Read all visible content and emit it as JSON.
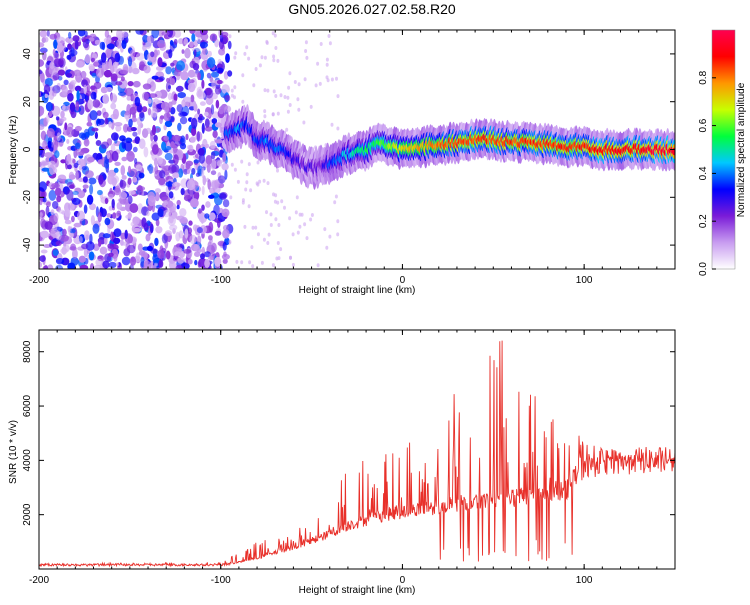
{
  "title": "GN05.2026.027.02.58.R20",
  "chart_data": [
    {
      "type": "heatmap",
      "xlabel": "Height of straight line (km)",
      "ylabel": "Frequency (Hz)",
      "xlim": [
        -200,
        150
      ],
      "ylim": [
        -50,
        50
      ],
      "xticks": [
        "-200",
        "-100",
        "0",
        "100"
      ],
      "yticks": [
        "-40",
        "-20",
        "0",
        "20",
        "40"
      ],
      "colorbar": {
        "label": "Normalized spectral amplitude",
        "range": [
          0,
          1
        ],
        "ticks": [
          "0.0",
          "0.2",
          "0.4",
          "0.6",
          "0.8"
        ],
        "colors": [
          "#ffffff",
          "#c89cf0",
          "#7a1bd8",
          "#0000ff",
          "#00c8ff",
          "#00ff3c",
          "#c8ff00",
          "#ff9600",
          "#ff0000",
          "#ff0050"
        ]
      },
      "ridge": {
        "x": [
          -97,
          -90,
          -85,
          -80,
          -75,
          -70,
          -65,
          -60,
          -55,
          -50,
          -45,
          -40,
          -35,
          -30,
          -25,
          -20,
          -15,
          -10,
          -5,
          0,
          10,
          20,
          30,
          40,
          50,
          60,
          70,
          80,
          90,
          100,
          110,
          120,
          130,
          140,
          150
        ],
        "y": [
          7,
          9,
          10,
          4,
          3,
          1,
          -1,
          -4,
          -6,
          -8,
          -7,
          -6,
          -4,
          -2,
          -1,
          0,
          2,
          3,
          1,
          0,
          1,
          2,
          3,
          4,
          4,
          3,
          3,
          2,
          1,
          1,
          0,
          0,
          0,
          0,
          0
        ],
        "peak_amplitude": [
          0.35,
          0.4,
          0.35,
          0.35,
          0.4,
          0.4,
          0.35,
          0.3,
          0.25,
          0.25,
          0.25,
          0.35,
          0.4,
          0.45,
          0.5,
          0.55,
          0.55,
          0.6,
          0.65,
          0.7,
          0.75,
          0.8,
          0.85,
          0.85,
          0.85,
          0.85,
          0.85,
          0.85,
          0.85,
          0.85,
          0.9,
          0.9,
          0.9,
          0.95,
          0.95
        ]
      },
      "noise_region_x": [
        -200,
        -95
      ]
    },
    {
      "type": "line",
      "xlabel": "Height of straight line (km)",
      "ylabel": "SNR (10 * v/v)",
      "xlim": [
        -200,
        150
      ],
      "ylim": [
        0,
        8800
      ],
      "xticks": [
        "-200",
        "-100",
        "0",
        "100"
      ],
      "yticks": [
        "2000",
        "4000",
        "6000",
        "8000"
      ],
      "series": [
        {
          "name": "SNR",
          "color": "#e8302a",
          "envelope_x": [
            -200,
            -100,
            -90,
            -80,
            -70,
            -60,
            -50,
            -40,
            -30,
            -20,
            -10,
            0,
            10,
            20,
            30,
            40,
            50,
            55,
            60,
            70,
            80,
            90,
            100,
            110,
            120,
            130,
            140,
            150
          ],
          "envelope_baseline": [
            150,
            150,
            250,
            400,
            600,
            800,
            1000,
            1300,
            1600,
            1800,
            2000,
            2100,
            2200,
            2300,
            2400,
            2500,
            2600,
            2600,
            2600,
            2700,
            2800,
            2900,
            3800,
            3900,
            3950,
            4000,
            4000,
            4000
          ],
          "envelope_peak": [
            200,
            250,
            600,
            1000,
            1200,
            1400,
            1800,
            2500,
            4000,
            4200,
            4300,
            4400,
            5500,
            6000,
            7000,
            7600,
            8100,
            8700,
            8000,
            7200,
            6500,
            6000,
            4600,
            4500,
            4400,
            4300,
            4200,
            4100
          ]
        }
      ]
    }
  ]
}
